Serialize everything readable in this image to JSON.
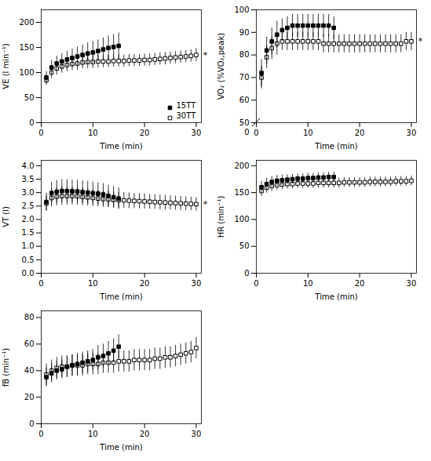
{
  "chart_data": [
    {
      "type": "scatter",
      "xlabel": "Time (min)",
      "ylabel": "VE (l min⁻¹)",
      "xlim": [
        0,
        31
      ],
      "xticks": [
        0,
        10,
        20,
        30
      ],
      "ylim": [
        0,
        225
      ],
      "yticks": [
        0,
        50,
        100,
        150,
        200
      ],
      "legend": "lower right",
      "series": [
        {
          "name": "15TT",
          "color": "black",
          "marker": "square",
          "x": [
            1,
            2,
            3,
            4,
            5,
            6,
            7,
            8,
            9,
            10,
            11,
            12,
            13,
            14,
            15
          ],
          "values": [
            90,
            110,
            118,
            122,
            126,
            129,
            132,
            135,
            138,
            140,
            143,
            146,
            149,
            151,
            153
          ],
          "errors": [
            12,
            14,
            15,
            16,
            17,
            18,
            19,
            20,
            21,
            22,
            22,
            23,
            24,
            25,
            26
          ]
        },
        {
          "name": "30TT",
          "color": "black",
          "marker": "open-square",
          "x": [
            1,
            2,
            3,
            4,
            5,
            6,
            7,
            8,
            9,
            10,
            11,
            12,
            13,
            14,
            15,
            16,
            17,
            18,
            19,
            20,
            21,
            22,
            23,
            24,
            25,
            26,
            27,
            28,
            29,
            30
          ],
          "values": [
            85,
            100,
            108,
            112,
            115,
            117,
            118,
            120,
            121,
            121,
            122,
            122,
            122,
            123,
            123,
            123,
            124,
            124,
            124,
            125,
            125,
            126,
            127,
            128,
            129,
            130,
            131,
            132,
            133,
            135
          ],
          "errors": [
            10,
            12,
            13,
            13,
            13,
            13,
            13,
            13,
            13,
            13,
            13,
            12,
            12,
            12,
            12,
            12,
            12,
            12,
            12,
            12,
            12,
            12,
            12,
            12,
            12,
            12,
            12,
            12,
            12,
            13
          ]
        }
      ],
      "annotations": [
        {
          "text": "*",
          "x": 31.2,
          "y": 135
        }
      ]
    },
    {
      "type": "scatter",
      "xlabel": "Time (min)",
      "ylabel": "VO₂ (%VO₂,peak)",
      "xlim": [
        0,
        31
      ],
      "xticks": [
        0,
        10,
        20,
        30
      ],
      "ylim": [
        50,
        100
      ],
      "yticks": [
        50,
        60,
        70,
        80,
        90,
        100
      ],
      "series": [
        {
          "name": "15TT",
          "color": "black",
          "marker": "square",
          "x": [
            1,
            2,
            3,
            4,
            5,
            6,
            7,
            8,
            9,
            10,
            11,
            12,
            13,
            14,
            15
          ],
          "values": [
            72,
            82,
            86,
            89,
            91,
            92,
            93,
            93,
            93,
            93,
            93,
            93,
            93,
            93,
            92
          ],
          "errors": [
            6,
            6,
            6,
            6,
            5,
            5,
            5,
            5,
            5,
            5,
            5,
            5,
            5,
            5,
            5
          ]
        },
        {
          "name": "30TT",
          "color": "black",
          "marker": "open-square",
          "x": [
            1,
            2,
            3,
            4,
            5,
            6,
            7,
            8,
            9,
            10,
            11,
            12,
            13,
            14,
            15,
            16,
            17,
            18,
            19,
            20,
            21,
            22,
            23,
            24,
            25,
            26,
            27,
            28,
            29,
            30
          ],
          "values": [
            70,
            79,
            83,
            85,
            86,
            86,
            86,
            86,
            86,
            86,
            86,
            86,
            85,
            85,
            85,
            85,
            85,
            85,
            85,
            85,
            85,
            85,
            85,
            85,
            85,
            85,
            85,
            85,
            86,
            86
          ],
          "errors": [
            5,
            5,
            5,
            5,
            4,
            4,
            4,
            4,
            4,
            4,
            4,
            4,
            4,
            4,
            4,
            4,
            4,
            4,
            4,
            4,
            4,
            4,
            4,
            4,
            4,
            4,
            4,
            4,
            4,
            4
          ]
        }
      ],
      "annotations": [
        {
          "text": "*",
          "x": 31.2,
          "y": 86
        },
        {
          "text": "0"
        }
      ]
    },
    {
      "type": "scatter",
      "xlabel": "Time (min)",
      "ylabel": "VT (l)",
      "xlim": [
        0,
        31
      ],
      "xticks": [
        0,
        10,
        20,
        30
      ],
      "ylim": [
        0.0,
        4.2
      ],
      "yticks": [
        {
          "value": 0.0,
          "label": "0.0"
        },
        0.5,
        {
          "value": 1.0,
          "label": "1.0"
        },
        1.5,
        {
          "value": 2.0,
          "label": "2.0"
        },
        2.5,
        {
          "value": 3.0,
          "label": "3.0"
        },
        3.5,
        {
          "value": 4.0,
          "label": "4.0"
        }
      ],
      "series": [
        {
          "name": "15TT",
          "color": "black",
          "marker": "square",
          "x": [
            1,
            2,
            3,
            4,
            5,
            6,
            7,
            8,
            9,
            10,
            11,
            12,
            13,
            14,
            15
          ],
          "values": [
            2.65,
            2.98,
            3.03,
            3.06,
            3.06,
            3.05,
            3.04,
            3.02,
            3.0,
            2.98,
            2.96,
            2.93,
            2.88,
            2.83,
            2.78
          ],
          "errors": [
            0.33,
            0.4,
            0.42,
            0.42,
            0.42,
            0.42,
            0.42,
            0.42,
            0.42,
            0.41,
            0.41,
            0.41,
            0.4,
            0.4,
            0.4
          ]
        },
        {
          "name": "30TT",
          "color": "black",
          "marker": "open-square",
          "x": [
            1,
            2,
            3,
            4,
            5,
            6,
            7,
            8,
            9,
            10,
            11,
            12,
            13,
            14,
            15,
            16,
            17,
            18,
            19,
            20,
            21,
            22,
            23,
            24,
            25,
            26,
            27,
            28,
            29,
            30
          ],
          "values": [
            2.6,
            2.8,
            2.85,
            2.87,
            2.87,
            2.87,
            2.86,
            2.84,
            2.82,
            2.8,
            2.78,
            2.76,
            2.75,
            2.73,
            2.72,
            2.71,
            2.7,
            2.69,
            2.68,
            2.67,
            2.66,
            2.65,
            2.64,
            2.63,
            2.62,
            2.61,
            2.6,
            2.59,
            2.58,
            2.57
          ],
          "errors": [
            0.28,
            0.33,
            0.34,
            0.34,
            0.34,
            0.33,
            0.33,
            0.32,
            0.32,
            0.31,
            0.31,
            0.3,
            0.3,
            0.3,
            0.29,
            0.29,
            0.29,
            0.28,
            0.28,
            0.28,
            0.27,
            0.27,
            0.27,
            0.27,
            0.26,
            0.26,
            0.26,
            0.26,
            0.25,
            0.25
          ]
        }
      ],
      "annotations": [
        {
          "text": "*",
          "x": 31.2,
          "y": 2.57
        }
      ]
    },
    {
      "type": "scatter",
      "xlabel": "Time (min)",
      "ylabel": "HR (min⁻¹)",
      "xlim": [
        0,
        31
      ],
      "xticks": [
        0,
        10,
        20,
        30
      ],
      "ylim": [
        0,
        210
      ],
      "yticks": [
        0,
        50,
        100,
        150,
        200
      ],
      "series": [
        {
          "name": "15TT",
          "color": "black",
          "marker": "square",
          "x": [
            1,
            2,
            3,
            4,
            5,
            6,
            7,
            8,
            9,
            10,
            11,
            12,
            13,
            14,
            15
          ],
          "values": [
            160,
            166,
            170,
            172,
            173,
            174,
            175,
            176,
            176,
            177,
            177,
            178,
            178,
            179,
            179
          ],
          "errors": [
            11,
            11,
            10,
            10,
            10,
            9,
            9,
            9,
            9,
            9,
            9,
            9,
            9,
            9,
            9
          ]
        },
        {
          "name": "30TT",
          "color": "black",
          "marker": "open-square",
          "x": [
            1,
            2,
            3,
            4,
            5,
            6,
            7,
            8,
            9,
            10,
            11,
            12,
            13,
            14,
            15,
            16,
            17,
            18,
            19,
            20,
            21,
            22,
            23,
            24,
            25,
            26,
            27,
            28,
            29,
            30
          ],
          "values": [
            153,
            159,
            162,
            164,
            165,
            166,
            166,
            167,
            167,
            167,
            167,
            168,
            168,
            168,
            168,
            168,
            169,
            169,
            169,
            169,
            169,
            170,
            170,
            170,
            170,
            170,
            171,
            171,
            171,
            172
          ],
          "errors": [
            10,
            10,
            10,
            9,
            9,
            9,
            9,
            9,
            9,
            9,
            9,
            9,
            9,
            9,
            9,
            9,
            9,
            9,
            9,
            9,
            9,
            9,
            9,
            9,
            9,
            9,
            9,
            9,
            9,
            9
          ]
        }
      ]
    },
    {
      "type": "scatter",
      "xlabel": "Time (min)",
      "ylabel": "fB (min⁻¹)",
      "xlim": [
        0,
        31
      ],
      "xticks": [
        0,
        10,
        20,
        30
      ],
      "ylim": [
        0,
        85
      ],
      "yticks": [
        0,
        20,
        40,
        60,
        80
      ],
      "series": [
        {
          "name": "15TT",
          "color": "black",
          "marker": "square",
          "x": [
            1,
            2,
            3,
            4,
            5,
            6,
            7,
            8,
            9,
            10,
            11,
            12,
            13,
            14,
            15
          ],
          "values": [
            35,
            38,
            40,
            41,
            43,
            44,
            45,
            46,
            47,
            48,
            50,
            51,
            53,
            55,
            58
          ],
          "errors": [
            7,
            7,
            7,
            7,
            8,
            8,
            8,
            8,
            8,
            8,
            9,
            9,
            9,
            9,
            9
          ]
        },
        {
          "name": "30TT",
          "color": "black",
          "marker": "open-square",
          "x": [
            1,
            2,
            3,
            4,
            5,
            6,
            7,
            8,
            9,
            10,
            11,
            12,
            13,
            14,
            15,
            16,
            17,
            18,
            19,
            20,
            21,
            22,
            23,
            24,
            25,
            26,
            27,
            28,
            29,
            30
          ],
          "values": [
            37,
            40,
            42,
            43,
            43,
            44,
            44,
            44,
            45,
            45,
            45,
            46,
            46,
            46,
            47,
            47,
            47,
            48,
            48,
            48,
            48,
            49,
            49,
            50,
            50,
            51,
            52,
            53,
            54,
            57
          ],
          "errors": [
            8,
            8,
            8,
            8,
            8,
            8,
            8,
            8,
            8,
            8,
            8,
            8,
            8,
            8,
            8,
            8,
            8,
            8,
            8,
            8,
            8,
            8,
            8,
            8,
            8,
            8,
            8,
            8,
            8,
            8
          ]
        }
      ]
    }
  ]
}
